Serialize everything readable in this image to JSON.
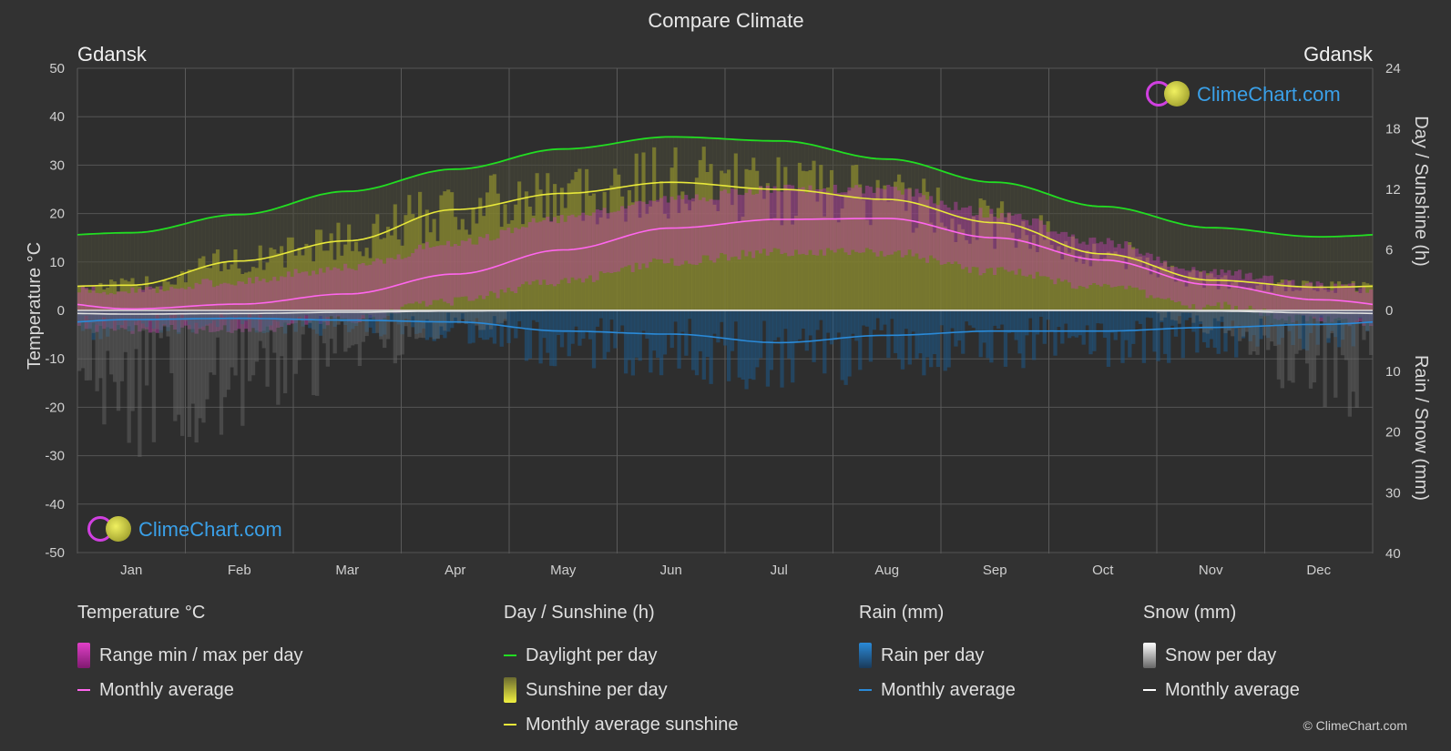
{
  "title": "Compare Climate",
  "city_left": "Gdansk",
  "city_right": "Gdansk",
  "axes": {
    "left_label": "Temperature °C",
    "right_top_label": "Day / Sunshine (h)",
    "right_bottom_label": "Rain / Snow (mm)",
    "left_ticks": [
      "50",
      "40",
      "30",
      "20",
      "10",
      "0",
      "-10",
      "-20",
      "-30",
      "-40",
      "-50"
    ],
    "right_top_ticks": [
      "24",
      "18",
      "12",
      "6",
      "0"
    ],
    "right_bottom_ticks": [
      "10",
      "20",
      "30",
      "40"
    ]
  },
  "logo_text": "ClimeChart.com",
  "copyright": "© ClimeChart.com",
  "colors": {
    "background": "#323232",
    "daylight": "#22dd22",
    "sunshine": "#e8e83a",
    "temp_avg": "#ff66ee",
    "temp_range": "#e040c8",
    "rain": "#2a8ad8",
    "snow": "#ffffff"
  },
  "legend": {
    "temperature": {
      "title": "Temperature °C",
      "range": "Range min / max per day",
      "avg": "Monthly average"
    },
    "sunshine": {
      "title": "Day / Sunshine (h)",
      "daylight": "Daylight per day",
      "sunshine": "Sunshine per day",
      "avg": "Monthly average sunshine"
    },
    "rain": {
      "title": "Rain (mm)",
      "per_day": "Rain per day",
      "avg": "Monthly average"
    },
    "snow": {
      "title": "Snow (mm)",
      "per_day": "Snow per day",
      "avg": "Monthly average"
    }
  },
  "chart_data": {
    "type": "line",
    "x": [
      "Jan",
      "Feb",
      "Mar",
      "Apr",
      "May",
      "Jun",
      "Jul",
      "Aug",
      "Sep",
      "Oct",
      "Nov",
      "Dec"
    ],
    "temp_ylim": [
      -50,
      50
    ],
    "sun_ylim": [
      0,
      24
    ],
    "precip_ylim": [
      0,
      40
    ],
    "grid": true,
    "series": [
      {
        "name": "Daylight per day",
        "axis": "hours",
        "values": [
          7.7,
          9.5,
          11.8,
          14.0,
          16.0,
          17.2,
          16.8,
          15.0,
          12.7,
          10.3,
          8.2,
          7.3
        ]
      },
      {
        "name": "Monthly average sunshine",
        "axis": "hours",
        "values": [
          2.5,
          4.9,
          6.9,
          10.0,
          11.6,
          12.7,
          12.0,
          11.0,
          8.7,
          5.6,
          3.0,
          2.3
        ]
      },
      {
        "name": "Monthly average",
        "axis": "temperature",
        "values": [
          0.3,
          1.3,
          3.4,
          7.5,
          12.5,
          17.0,
          18.8,
          19.0,
          15.0,
          10.4,
          5.3,
          2.2
        ]
      },
      {
        "name": "Monthly average rain",
        "axis": "precip",
        "values": [
          1.5,
          1.3,
          1.6,
          1.9,
          3.4,
          3.9,
          5.3,
          4.1,
          3.4,
          3.4,
          2.8,
          2.3
        ]
      },
      {
        "name": "Monthly average snow",
        "axis": "precip",
        "values": [
          0.6,
          0.5,
          0.3,
          0.1,
          0.0,
          0.0,
          0.0,
          0.0,
          0.0,
          0.0,
          0.1,
          0.4
        ]
      }
    ],
    "temp_range": {
      "min": [
        -3,
        -3,
        -1,
        3,
        7,
        11,
        13,
        13,
        9,
        6,
        2,
        -1
      ],
      "max": [
        3,
        5,
        8,
        13,
        18,
        22,
        24,
        24,
        19,
        13,
        7,
        4
      ]
    }
  }
}
